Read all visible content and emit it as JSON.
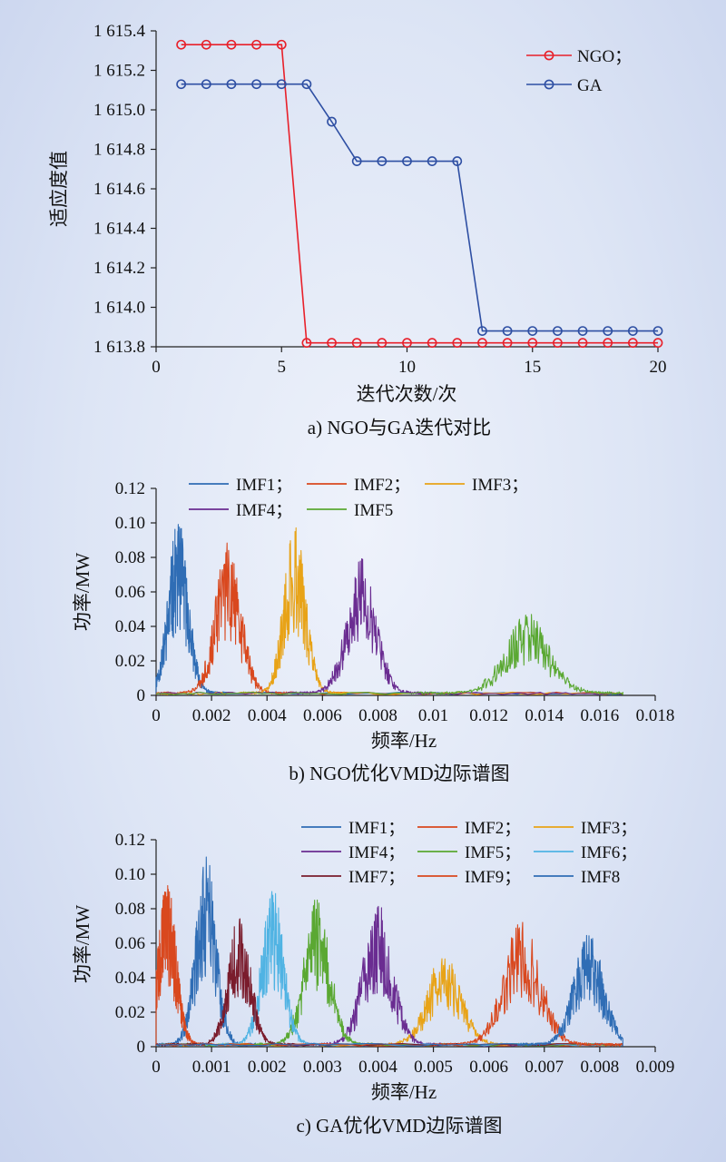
{
  "charts": [
    {
      "type": "line",
      "caption": "a) NGO与GA迭代对比",
      "xlabel": "迭代次数/次",
      "ylabel": "适应度值",
      "xlim": [
        0,
        20
      ],
      "ylim": [
        1613.8,
        1615.4
      ],
      "xticks": [
        0,
        5,
        10,
        15,
        20
      ],
      "xtick_labels": [
        "0",
        "5",
        "10",
        "15",
        "20"
      ],
      "yticks": [
        1613.8,
        1614.0,
        1614.2,
        1614.4,
        1614.6,
        1614.8,
        1615.0,
        1615.2,
        1615.4
      ],
      "ytick_labels": [
        "1 613.8",
        "1 614.0",
        "1 614.2",
        "1 614.4",
        "1 614.6",
        "1 614.8",
        "1 615.0",
        "1 615.2",
        "1 615.4"
      ],
      "legend_position": "top-right",
      "series": [
        {
          "name": "NGO；",
          "color": "#e8202a",
          "x": [
            1,
            2,
            3,
            4,
            5,
            6,
            7,
            8,
            9,
            10,
            11,
            12,
            13,
            14,
            15,
            16,
            17,
            18,
            19,
            20
          ],
          "values": [
            1615.33,
            1615.33,
            1615.33,
            1615.33,
            1615.33,
            1613.82,
            1613.82,
            1613.82,
            1613.82,
            1613.82,
            1613.82,
            1613.82,
            1613.82,
            1613.82,
            1613.82,
            1613.82,
            1613.82,
            1613.82,
            1613.82,
            1613.82
          ]
        },
        {
          "name": "GA",
          "color": "#2e4fa3",
          "x": [
            1,
            2,
            3,
            4,
            5,
            6,
            7,
            8,
            9,
            10,
            11,
            12,
            13,
            14,
            15,
            16,
            17,
            18,
            19,
            20
          ],
          "values": [
            1615.13,
            1615.13,
            1615.13,
            1615.13,
            1615.13,
            1615.13,
            1614.94,
            1614.74,
            1614.74,
            1614.74,
            1614.74,
            1614.74,
            1613.88,
            1613.88,
            1613.88,
            1613.88,
            1613.88,
            1613.88,
            1613.88,
            1613.88
          ]
        }
      ]
    },
    {
      "type": "line",
      "caption": "b) NGO优化VMD边际谱图",
      "xlabel": "频率/Hz",
      "ylabel": "功率/MW",
      "xlim": [
        0,
        0.018
      ],
      "ylim": [
        0,
        0.12
      ],
      "xticks": [
        0,
        0.002,
        0.004,
        0.006,
        0.008,
        0.01,
        0.012,
        0.014,
        0.016,
        0.018
      ],
      "xtick_labels": [
        "0",
        "0.002",
        "0.004",
        "0.006",
        "0.008",
        "0.01",
        "0.012",
        "0.014",
        "0.016",
        "0.018"
      ],
      "yticks": [
        0,
        0.02,
        0.04,
        0.06,
        0.08,
        0.1,
        0.12
      ],
      "ytick_labels": [
        "0",
        "0.02",
        "0.04",
        "0.06",
        "0.08",
        "0.10",
        "0.12"
      ],
      "legend_position": "top",
      "series": [
        {
          "name": "IMF1；",
          "color": "#2f6db5",
          "center": 0.0008,
          "width": 0.00055,
          "peak": 0.101
        },
        {
          "name": "IMF2；",
          "color": "#d9481e",
          "center": 0.0026,
          "width": 0.0007,
          "peak": 0.088
        },
        {
          "name": "IMF3；",
          "color": "#e8a317",
          "center": 0.005,
          "width": 0.0006,
          "peak": 0.097
        },
        {
          "name": "IMF4；",
          "color": "#6a2c91",
          "center": 0.0074,
          "width": 0.0008,
          "peak": 0.079
        },
        {
          "name": "IMF5",
          "color": "#5aa832",
          "center": 0.0134,
          "width": 0.0012,
          "peak": 0.046
        }
      ]
    },
    {
      "type": "line",
      "caption": "c) GA优化VMD边际谱图",
      "xlabel": "频率/Hz",
      "ylabel": "功率/MW",
      "xlim": [
        0,
        0.009
      ],
      "ylim": [
        0,
        0.12
      ],
      "xticks": [
        0,
        0.001,
        0.002,
        0.003,
        0.004,
        0.005,
        0.006,
        0.007,
        0.008,
        0.009
      ],
      "xtick_labels": [
        "0",
        "0.001",
        "0.002",
        "0.003",
        "0.004",
        "0.005",
        "0.006",
        "0.007",
        "0.008",
        "0.009"
      ],
      "yticks": [
        0,
        0.02,
        0.04,
        0.06,
        0.08,
        0.1,
        0.12
      ],
      "ytick_labels": [
        "0",
        "0.02",
        "0.04",
        "0.06",
        "0.08",
        "0.10",
        "0.12"
      ],
      "legend_position": "top-right",
      "series": [
        {
          "name": "IMF1；",
          "color": "#2f6db5",
          "center": 0.0009,
          "width": 0.00028,
          "peak": 0.111
        },
        {
          "name": "IMF2；",
          "color": "#d9481e",
          "center": 0.0002,
          "width": 0.00025,
          "peak": 0.094
        },
        {
          "name": "IMF3；",
          "color": "#e8a317",
          "center": 0.0052,
          "width": 0.00045,
          "peak": 0.054
        },
        {
          "name": "IMF4；",
          "color": "#6a2c91",
          "center": 0.004,
          "width": 0.0004,
          "peak": 0.082
        },
        {
          "name": "IMF5；",
          "color": "#5aa832",
          "center": 0.0029,
          "width": 0.00035,
          "peak": 0.089
        },
        {
          "name": "IMF6；",
          "color": "#4fb3e3",
          "center": 0.0021,
          "width": 0.0003,
          "peak": 0.092
        },
        {
          "name": "IMF7；",
          "color": "#7a1c2c",
          "center": 0.0015,
          "width": 0.0003,
          "peak": 0.075
        },
        {
          "name": "IMF9；",
          "color": "#d9481e",
          "center": 0.0066,
          "width": 0.0005,
          "peak": 0.073
        },
        {
          "name": "IMF8",
          "color": "#2f6db5",
          "center": 0.0078,
          "width": 0.0004,
          "peak": 0.066
        }
      ]
    }
  ]
}
